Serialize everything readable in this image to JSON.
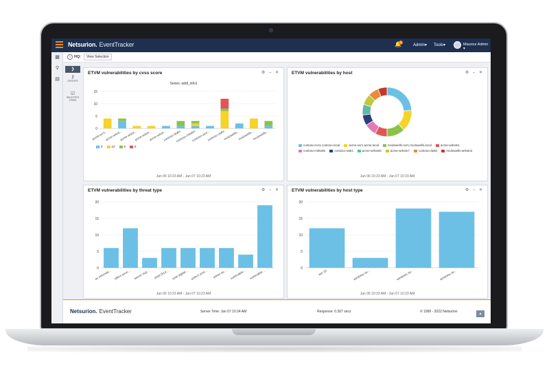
{
  "app": {
    "brand": "Netsurion.",
    "product": "EventTracker",
    "notification_count": "0",
    "menu": [
      "Admin▾",
      "Tools▾"
    ],
    "user": "Maurice Admin ▾"
  },
  "hq": {
    "label": "HQ:",
    "view_selection": "View Selection"
  },
  "side_panel": {
    "groups": "GROUPS",
    "selected": "SELECTED ITEMS"
  },
  "widget_controls": "⚙ – ✕",
  "footer": {
    "brand": "Netsurion.",
    "product": "EventTracker",
    "server_time": "Server Time: Jan 07 10:24 AM",
    "response": "Response: 0.367 secs",
    "copyright": "© 1999 - 2022 Netsurion"
  },
  "widgets": [
    {
      "title": "ETVM vulnerabilities by cvss score",
      "footer": "Jan 06 10:23 AM - Jan 07 10:23 AM",
      "series_label": "Series: addl_info1"
    },
    {
      "title": "ETVM vulnerabilities by host",
      "footer": "Jan 06 10:23 AM - Jan 07 10:23 AM"
    },
    {
      "title": "ETVM vulnerabilities by threat type",
      "footer": "Jan 06 10:23 AM - Jan 07 10:23 AM"
    },
    {
      "title": "ETVM vulnerabilities by host type",
      "footer": "Jan 06 10:23 AM - Jan 07 10:23 AM"
    }
  ],
  "chart_data": [
    {
      "type": "bar",
      "stacked": true,
      "categories": [
        "acme-svr1...",
        "acme-wrkst...",
        "acme-wrkst...",
        "acme-wrkst...",
        "acme-wrkst...",
        "contoso-dwks",
        "contoso-mkwks",
        "contoso-ssvr...",
        "contoso-uwks",
        "mcdowells...",
        "mcdowells...",
        "mcdowells..."
      ],
      "series": [
        {
          "name": "3",
          "color": "#6cc0e5",
          "values": [
            0,
            3,
            0,
            0,
            1,
            1,
            1,
            1,
            0,
            2,
            0,
            1
          ]
        },
        {
          "name": "10",
          "color": "#f5d327",
          "values": [
            4,
            0,
            1,
            1,
            0,
            0,
            1,
            0,
            7,
            0,
            4,
            0
          ]
        },
        {
          "name": "5",
          "color": "#8bc34a",
          "values": [
            0,
            1,
            0,
            0,
            0,
            2,
            1,
            0,
            1,
            0,
            0,
            2
          ]
        },
        {
          "name": "8",
          "color": "#e05656",
          "values": [
            0,
            0,
            0,
            0,
            0,
            0,
            0,
            0,
            4,
            0,
            0,
            0
          ]
        }
      ],
      "ylim": [
        0,
        15
      ],
      "yticks": [
        0,
        5,
        10,
        15
      ],
      "legend_position": "bottom"
    },
    {
      "type": "pie",
      "donut": true,
      "slices": [
        {
          "label": "contoso-svr1.contoso.local",
          "value": 24,
          "color": "#6cc0e5"
        },
        {
          "label": "acme-svr1.acme.local",
          "value": 14,
          "color": "#f5d327"
        },
        {
          "label": "mcdowells-svr1.mcdowells.local",
          "value": 12,
          "color": "#8bc34a"
        },
        {
          "label": "acme-wrkstn1",
          "value": 8,
          "color": "#e05656"
        },
        {
          "label": "contoso-mktwks",
          "value": 8,
          "color": "#e07ab8"
        },
        {
          "label": "contoso-uwks",
          "value": 7,
          "color": "#2c3e7a"
        },
        {
          "label": "acme-wrkstn6",
          "value": 7,
          "color": "#5fb9a6"
        },
        {
          "label": "acme-wrkstn7",
          "value": 7,
          "color": "#c0c93a"
        },
        {
          "label": "contoso-dwks",
          "value": 7,
          "color": "#e98a3c"
        },
        {
          "label": "mcdowells-wrkstn2",
          "value": 6,
          "color": "#c0392b"
        }
      ],
      "legend_position": "bottom"
    },
    {
      "type": "bar",
      "categories": [
        "av informat...",
        "offers seve...",
        "server sup...",
        "shell (514...",
        "smb digital...",
        "smbv1 prot...",
        "telnet se...",
        "vulnerable...",
        "vulnerable..."
      ],
      "values": [
        6,
        12,
        3,
        6,
        6,
        6,
        6,
        4,
        19
      ],
      "color": "#6cc0e5",
      "ylim": [
        0,
        20
      ],
      "yticks": [
        0,
        5,
        10,
        15,
        20
      ]
    },
    {
      "type": "bar",
      "categories": [
        "win 10",
        "windows se...",
        "windows se...",
        "windows se..."
      ],
      "values": [
        12,
        3,
        18,
        17
      ],
      "color": "#6cc0e5",
      "ylim": [
        0,
        20
      ],
      "yticks": [
        0,
        5,
        10,
        15,
        20
      ]
    }
  ]
}
